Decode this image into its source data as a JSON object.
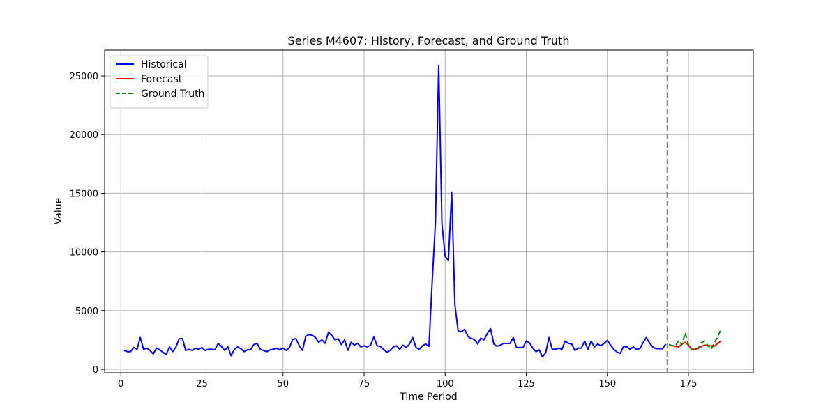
{
  "chart_data": {
    "type": "line",
    "title": "Series M4607: History, Forecast, and Ground Truth",
    "xlabel": "Time Period",
    "ylabel": "Value",
    "xlim": [
      -5,
      195
    ],
    "ylim": [
      -300,
      27200
    ],
    "x_ticks": [
      0,
      25,
      50,
      75,
      100,
      125,
      150,
      175
    ],
    "y_ticks": [
      0,
      5000,
      10000,
      15000,
      20000,
      25000
    ],
    "grid": true,
    "legend_position": "top-left",
    "forecast_start_marker": 168.5,
    "series": [
      {
        "name": "Historical",
        "color": "#0000ff",
        "style": "solid",
        "x_start": 1,
        "values": [
          1600,
          1500,
          1500,
          1850,
          1700,
          2700,
          1700,
          1800,
          1600,
          1300,
          1800,
          1650,
          1450,
          1250,
          1900,
          1500,
          1900,
          2600,
          2600,
          1600,
          1700,
          1600,
          1800,
          1700,
          1850,
          1600,
          1700,
          1700,
          1650,
          2200,
          1950,
          1600,
          1900,
          1150,
          1700,
          1900,
          1750,
          1500,
          1650,
          1650,
          2100,
          2200,
          1700,
          1600,
          1500,
          1650,
          1700,
          1800,
          1650,
          1800,
          1600,
          1850,
          2550,
          2600,
          2000,
          1600,
          2800,
          2950,
          2900,
          2700,
          2300,
          2500,
          2200,
          3150,
          2900,
          2500,
          2600,
          2100,
          2500,
          1600,
          2300,
          2050,
          2200,
          1900,
          2000,
          1900,
          2050,
          2750,
          2000,
          1950,
          1700,
          1450,
          1600,
          1900,
          2000,
          1700,
          2050,
          1850,
          2150,
          2700,
          1850,
          1700,
          2000,
          2150,
          1950,
          7500,
          12500,
          25900,
          12400,
          9600,
          9300,
          15100,
          5500,
          3250,
          3200,
          3400,
          2800,
          2600,
          2550,
          2150,
          2650,
          2500,
          3050,
          3450,
          2150,
          1950,
          2050,
          2200,
          2200,
          2200,
          2700,
          1850,
          1850,
          1850,
          2400,
          2250,
          1800,
          1500,
          1650,
          1050,
          1400,
          2700,
          1700,
          1700,
          1800,
          1700,
          2400,
          2200,
          2150,
          1600,
          1800,
          1800,
          2400,
          1700,
          2400,
          1900,
          2150,
          2000,
          2200,
          2450,
          2050,
          1700,
          1450,
          1350,
          1950,
          1900,
          1700,
          1900,
          1700,
          1750,
          2250,
          2700,
          2250,
          1900,
          1750,
          1750,
          1750,
          2150
        ]
      },
      {
        "name": "Forecast",
        "color": "#ff0000",
        "style": "solid",
        "x_start": 169,
        "values": [
          2100,
          2000,
          1950,
          1900,
          2150,
          2300,
          2050,
          1700,
          1700,
          1800,
          1950,
          2050,
          2000,
          2000,
          1950,
          2200,
          2400
        ]
      },
      {
        "name": "Ground Truth",
        "color": "#008000",
        "style": "dashed",
        "x_start": 169,
        "values": [
          2100,
          2000,
          2000,
          2450,
          2100,
          3100,
          2100,
          1650,
          1650,
          1750,
          2250,
          2400,
          2000,
          1700,
          2250,
          2750,
          3400
        ]
      }
    ]
  }
}
